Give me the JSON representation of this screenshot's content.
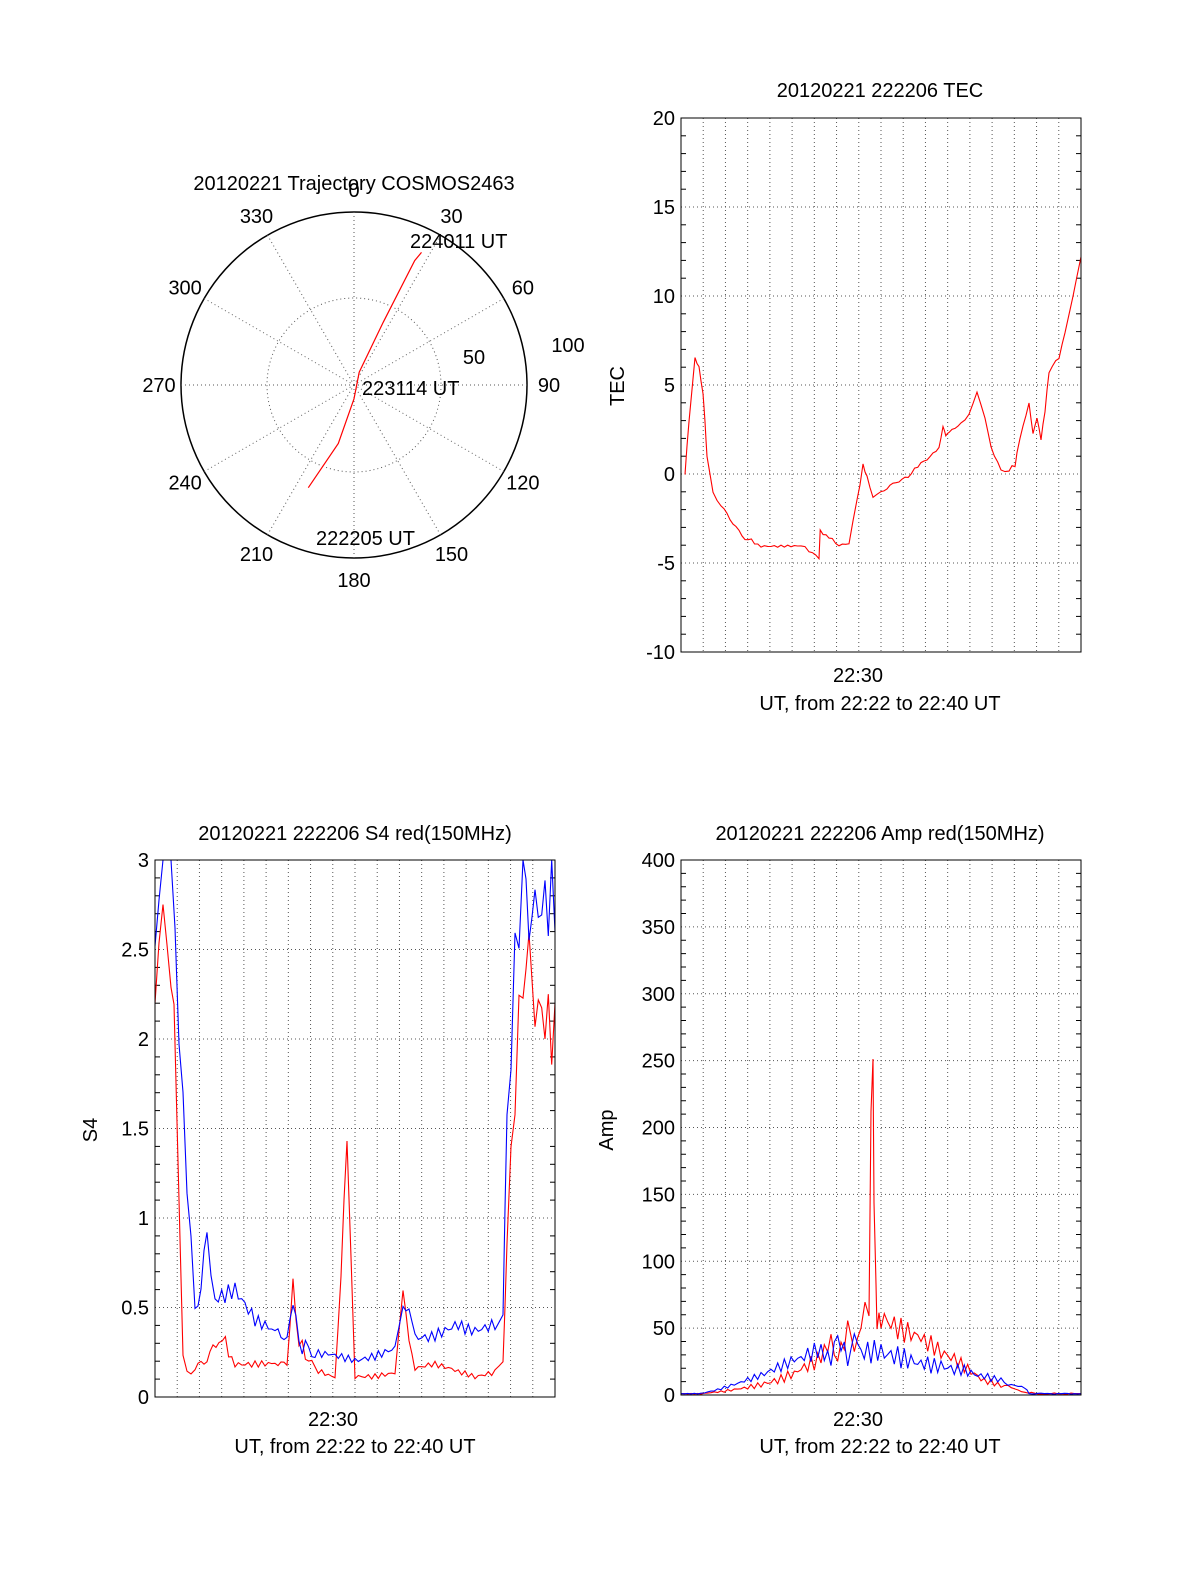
{
  "chart_data": [
    {
      "id": "polar",
      "type": "scatter",
      "title": "20120221 Trajectory COSMOS2463",
      "angle_labels": [
        "0",
        "30",
        "60",
        "90",
        "120",
        "150",
        "180",
        "210",
        "240",
        "270",
        "300",
        "330"
      ],
      "radius_labels": [
        "50",
        "100"
      ],
      "annotations": [
        "224011 UT",
        "223114 UT",
        "222205 UT"
      ],
      "colors": {
        "trajectory": "#ff0000"
      },
      "series": [
        {
          "values": [
            [
              204,
              65
            ],
            [
              195,
              35
            ],
            [
              180,
              8
            ],
            [
              22,
              8
            ],
            [
              25,
              40
            ],
            [
              26,
              80
            ],
            [
              27,
              86
            ]
          ]
        }
      ],
      "grid": true
    },
    {
      "id": "tec",
      "type": "line",
      "title": "20120221 222206 TEC",
      "xlabel": "UT, from 22:22 to 22:40 UT",
      "ylabel": "TEC",
      "yticks": [
        "20",
        "15",
        "10",
        "5",
        "0",
        "-5",
        "-10"
      ],
      "xticks": [
        "22:30"
      ],
      "ylim": [
        -10,
        20
      ],
      "xlim": [
        0,
        1
      ],
      "grid": true,
      "colors": {
        "series": "#ff0000"
      },
      "series": [
        {
          "x": [
            0.01,
            0.02,
            0.035,
            0.045,
            0.055,
            0.06,
            0.065,
            0.08,
            0.1,
            0.13,
            0.16,
            0.2,
            0.25,
            0.3,
            0.32,
            0.345,
            0.348,
            0.37,
            0.395,
            0.42,
            0.44,
            0.455,
            0.465,
            0.48,
            0.5,
            0.53,
            0.56,
            0.6,
            0.63,
            0.645,
            0.655,
            0.662,
            0.67,
            0.7,
            0.72,
            0.74,
            0.76,
            0.775,
            0.8,
            0.82,
            0.835,
            0.84,
            0.87,
            0.88,
            0.89,
            0.9,
            0.91,
            0.92,
            0.945,
            0.96,
            0.98,
            1.0
          ],
          "y": [
            0,
            3,
            6.5,
            6,
            4.5,
            3,
            1,
            -1,
            -1.8,
            -2.8,
            -3.6,
            -4,
            -4,
            -4,
            -4.3,
            -4.8,
            -3.2,
            -3.6,
            -4,
            -4,
            -1.5,
            0.5,
            -0.2,
            -1.3,
            -1,
            -0.6,
            -0.3,
            0.6,
            1.2,
            1.4,
            2.6,
            2.2,
            2.3,
            2.8,
            3.3,
            4.6,
            3.2,
            1.5,
            0.3,
            0.2,
            0.5,
            1.2,
            4,
            2.3,
            3.2,
            2,
            3.6,
            5.8,
            6.5,
            8,
            10,
            12.2
          ]
        }
      ]
    },
    {
      "id": "s4",
      "type": "line",
      "title": "20120221 222206 S4 red(150MHz)",
      "xlabel": "UT, from 22:22 to 22:40 UT",
      "ylabel": "S4",
      "yticks": [
        "3",
        "2.5",
        "2",
        "1.5",
        "1",
        "0.5",
        "0"
      ],
      "xticks": [
        "22:30"
      ],
      "ylim": [
        0,
        3
      ],
      "xlim": [
        0,
        1
      ],
      "grid": true,
      "colors": {
        "red": "#ff0000",
        "blue": "#0000ff"
      },
      "series": [
        {
          "x": [
            0,
            0.02,
            0.04,
            0.055,
            0.07,
            0.08,
            0.1,
            0.13,
            0.16,
            0.2,
            0.25,
            0.3,
            0.33,
            0.345,
            0.36,
            0.4,
            0.45,
            0.48,
            0.5,
            0.55,
            0.6,
            0.62,
            0.65,
            0.7,
            0.75,
            0.8,
            0.85,
            0.87,
            0.88,
            0.9,
            0.92,
            0.95,
            1.0
          ],
          "y": [
            2.2,
            3,
            2.6,
            1.5,
            0.25,
            0.15,
            0.15,
            0.2,
            0.35,
            0.2,
            0.2,
            0.2,
            0.2,
            0.62,
            0.3,
            0.15,
            0.1,
            1.45,
            0.1,
            0.1,
            0.12,
            0.6,
            0.15,
            0.18,
            0.15,
            0.12,
            0.15,
            0.2,
            0.9,
            1.8,
            2.7,
            2.4,
            2.2
          ]
        },
        {
          "x": [
            0,
            0.02,
            0.04,
            0.06,
            0.08,
            0.1,
            0.13,
            0.15,
            0.2,
            0.25,
            0.3,
            0.33,
            0.345,
            0.36,
            0.4,
            0.45,
            0.5,
            0.55,
            0.6,
            0.62,
            0.65,
            0.7,
            0.75,
            0.8,
            0.85,
            0.87,
            0.88,
            0.9,
            0.92,
            0.95,
            1.0
          ],
          "y": [
            2.5,
            2.9,
            2.7,
            1.8,
            1.1,
            0.5,
            0.9,
            0.5,
            0.55,
            0.4,
            0.35,
            0.3,
            0.55,
            0.3,
            0.25,
            0.25,
            0.22,
            0.25,
            0.3,
            0.5,
            0.35,
            0.35,
            0.4,
            0.35,
            0.38,
            0.45,
            1.5,
            2.3,
            2.7,
            2.5,
            2.6
          ]
        }
      ]
    },
    {
      "id": "amp",
      "type": "line",
      "title": "20120221 222206 Amp red(150MHz)",
      "xlabel": "UT, from 22:22 to 22:40 UT",
      "ylabel": "Amp",
      "yticks": [
        "400",
        "350",
        "300",
        "250",
        "200",
        "150",
        "100",
        "50",
        "0"
      ],
      "xticks": [
        "22:30"
      ],
      "ylim": [
        0,
        400
      ],
      "xlim": [
        0,
        1
      ],
      "grid": true,
      "colors": {
        "red": "#ff0000",
        "blue": "#0000ff"
      },
      "series": [
        {
          "x": [
            0,
            0.05,
            0.1,
            0.15,
            0.2,
            0.25,
            0.3,
            0.35,
            0.45,
            0.47,
            0.48,
            0.485,
            0.49,
            0.5,
            0.55,
            0.6,
            0.65,
            0.7,
            0.75,
            0.8,
            0.86,
            0.9,
            1.0
          ],
          "y": [
            1,
            1,
            3,
            6,
            10,
            15,
            22,
            30,
            45,
            60,
            260,
            80,
            50,
            48,
            40,
            35,
            28,
            22,
            12,
            8,
            2,
            1,
            1
          ]
        },
        {
          "x": [
            0,
            0.05,
            0.1,
            0.15,
            0.2,
            0.25,
            0.3,
            0.35,
            0.45,
            0.5,
            0.55,
            0.6,
            0.65,
            0.7,
            0.75,
            0.8,
            0.86,
            0.87,
            0.9,
            1.0
          ],
          "y": [
            1,
            1,
            4,
            8,
            12,
            18,
            25,
            32,
            38,
            40,
            36,
            30,
            25,
            20,
            14,
            10,
            5,
            1,
            1,
            1
          ]
        }
      ]
    }
  ]
}
